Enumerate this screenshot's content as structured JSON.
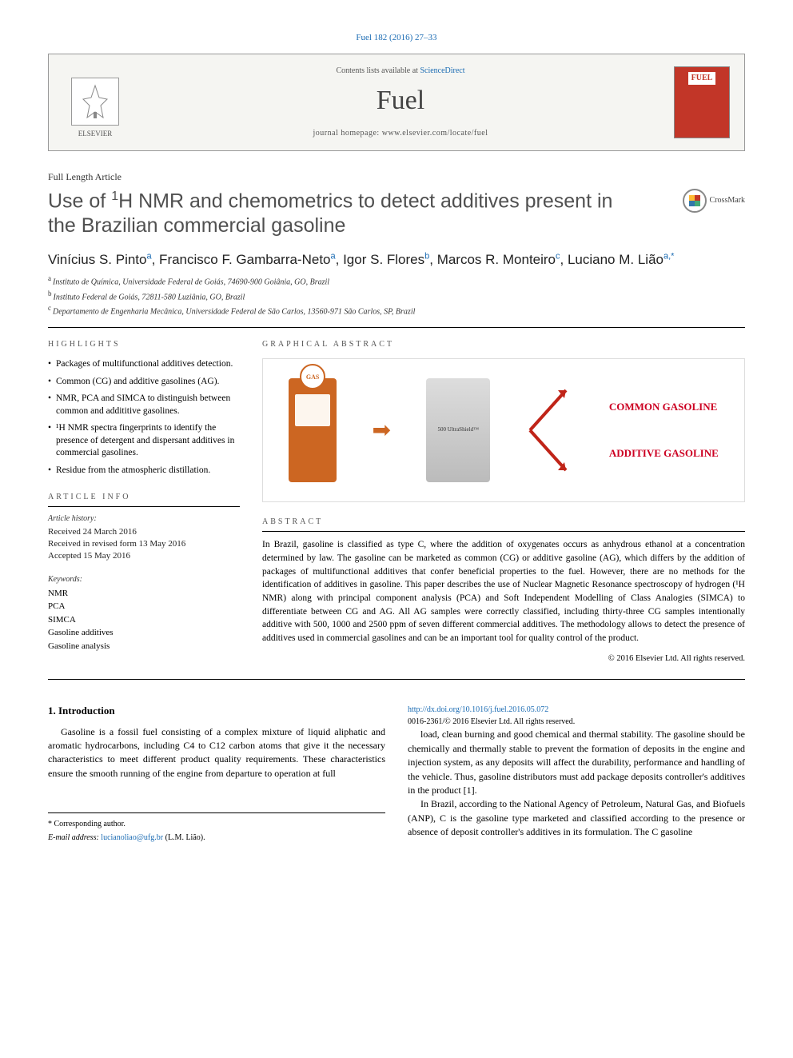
{
  "citation": "Fuel 182 (2016) 27–33",
  "header": {
    "contents_prefix": "Contents lists available at ",
    "contents_link": "ScienceDirect",
    "journal": "Fuel",
    "homepage_prefix": "journal homepage: ",
    "homepage_url": "www.elsevier.com/locate/fuel",
    "publisher": "ELSEVIER",
    "cover_label": "FUEL"
  },
  "article_type": "Full Length Article",
  "title_html": "Use of <sup>1</sup>H NMR and chemometrics to detect additives present in the Brazilian commercial gasoline",
  "crossmark": "CrossMark",
  "authors": [
    {
      "name": "Vinícius S. Pinto",
      "aff": "a"
    },
    {
      "name": "Francisco F. Gambarra-Neto",
      "aff": "a"
    },
    {
      "name": "Igor S. Flores",
      "aff": "b"
    },
    {
      "name": "Marcos R. Monteiro",
      "aff": "c"
    },
    {
      "name": "Luciano M. Lião",
      "aff": "a,*"
    }
  ],
  "affiliations": [
    {
      "key": "a",
      "text": "Instituto de Química, Universidade Federal de Goiás, 74690-900 Goiânia, GO, Brazil"
    },
    {
      "key": "b",
      "text": "Instituto Federal de Goiás, 72811-580 Luziânia, GO, Brazil"
    },
    {
      "key": "c",
      "text": "Departamento de Engenharia Mecânica, Universidade Federal de São Carlos, 13560-971 São Carlos, SP, Brazil"
    }
  ],
  "highlights_label": "HIGHLIGHTS",
  "highlights": [
    "Packages of multifunctional additives detection.",
    "Common (CG) and additive gasolines (AG).",
    "NMR, PCA and SIMCA to distinguish between common and addititive gasolines.",
    "¹H NMR spectra fingerprints to identify the presence of detergent and dispersant additives in commercial gasolines.",
    "Residue from the atmospheric distillation."
  ],
  "ga_label": "GRAPHICAL ABSTRACT",
  "ga": {
    "pump_label": "GAS",
    "device_label": "500 UltraShield™",
    "common": "COMMON GASOLINE",
    "additive": "ADDITIVE GASOLINE",
    "arrow_color": "#c02418"
  },
  "article_info_label": "ARTICLE INFO",
  "history_label": "Article history:",
  "history": [
    "Received 24 March 2016",
    "Received in revised form 13 May 2016",
    "Accepted 15 May 2016"
  ],
  "keywords_label": "Keywords:",
  "keywords": [
    "NMR",
    "PCA",
    "SIMCA",
    "Gasoline additives",
    "Gasoline analysis"
  ],
  "abstract_label": "ABSTRACT",
  "abstract": "In Brazil, gasoline is classified as type C, where the addition of oxygenates occurs as anhydrous ethanol at a concentration determined by law. The gasoline can be marketed as common (CG) or additive gasoline (AG), which differs by the addition of packages of multifunctional additives that confer beneficial properties to the fuel. However, there are no methods for the identification of additives in gasoline. This paper describes the use of Nuclear Magnetic Resonance spectroscopy of hydrogen (¹H NMR) along with principal component analysis (PCA) and Soft Independent Modelling of Class Analogies (SIMCA) to differentiate between CG and AG. All AG samples were correctly classified, including thirty-three CG samples intentionally additive with 500, 1000 and 2500 ppm of seven different commercial additives. The methodology allows to detect the presence of additives used in commercial gasolines and can be an important tool for quality control of the product.",
  "copyright": "© 2016 Elsevier Ltd. All rights reserved.",
  "intro_heading": "1. Introduction",
  "intro_p1": "Gasoline is a fossil fuel consisting of a complex mixture of liquid aliphatic and aromatic hydrocarbons, including C4 to C12 carbon atoms that give it the necessary characteristics to meet different product quality requirements. These characteristics ensure the smooth running of the engine from departure to operation at full",
  "intro_col2_p1": "load, clean burning and good chemical and thermal stability. The gasoline should be chemically and thermally stable to prevent the formation of deposits in the engine and injection system, as any deposits will affect the durability, performance and handling of the vehicle. Thus, gasoline distributors must add package deposits controller's additives in the product [1].",
  "intro_col2_p2": "In Brazil, according to the National Agency of Petroleum, Natural Gas, and Biofuels (ANP), C is the gasoline type marketed and classified according to the presence or absence of deposit controller's additives in its formulation. The C gasoline",
  "footer": {
    "corr_label": "* Corresponding author.",
    "email_label": "E-mail address: ",
    "email": "lucianoliao@ufg.br",
    "email_person": " (L.M. Lião).",
    "doi": "http://dx.doi.org/10.1016/j.fuel.2016.05.072",
    "issn_line": "0016-2361/© 2016 Elsevier Ltd. All rights reserved."
  },
  "colors": {
    "link": "#1a6bb3",
    "accent_red": "#c23628",
    "text": "#000000",
    "gray": "#555555"
  }
}
